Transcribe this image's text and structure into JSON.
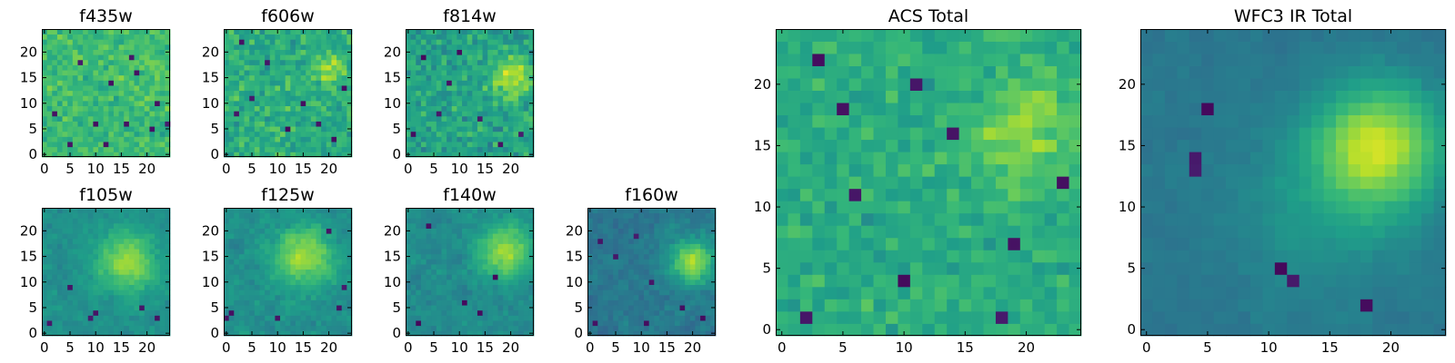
{
  "figure": {
    "colormap": "viridis"
  },
  "chart_data": [
    {
      "type": "heatmap",
      "title": "f435w",
      "grid_size": 25,
      "xticks": [
        0,
        5,
        10,
        15,
        20
      ],
      "yticks": [
        0,
        5,
        10,
        15,
        20
      ],
      "xlim": [
        -0.5,
        24.5
      ],
      "ylim": [
        -0.5,
        24.5
      ],
      "base_level": 0.68,
      "noise": 0.16,
      "smoothing": 0,
      "blobs": [
        {
          "x": 20,
          "y": 17,
          "amp": 0.05,
          "sigma": 3
        }
      ],
      "dark_pixels": [
        [
          5,
          2
        ],
        [
          2,
          8
        ],
        [
          10,
          6
        ],
        [
          17,
          19
        ],
        [
          16,
          6
        ],
        [
          21,
          5
        ],
        [
          13,
          14
        ],
        [
          18,
          16
        ],
        [
          22,
          10
        ],
        [
          7,
          18
        ],
        [
          24,
          6
        ],
        [
          12,
          2
        ]
      ],
      "seed": 11
    },
    {
      "type": "heatmap",
      "title": "f606w",
      "grid_size": 25,
      "xticks": [
        0,
        5,
        10,
        15,
        20
      ],
      "yticks": [
        0,
        5,
        10,
        15,
        20
      ],
      "xlim": [
        -0.5,
        24.5
      ],
      "ylim": [
        -0.5,
        24.5
      ],
      "base_level": 0.62,
      "noise": 0.2,
      "smoothing": 0,
      "blobs": [
        {
          "x": 20,
          "y": 17,
          "amp": 0.25,
          "sigma": 2.2
        }
      ],
      "dark_pixels": [
        [
          21,
          3
        ],
        [
          5,
          11
        ],
        [
          12,
          5
        ],
        [
          8,
          18
        ],
        [
          15,
          10
        ],
        [
          3,
          22
        ],
        [
          18,
          6
        ],
        [
          23,
          13
        ],
        [
          2,
          8
        ]
      ],
      "seed": 23
    },
    {
      "type": "heatmap",
      "title": "f814w",
      "grid_size": 25,
      "xticks": [
        0,
        5,
        10,
        15,
        20
      ],
      "yticks": [
        0,
        5,
        10,
        15,
        20
      ],
      "xlim": [
        -0.5,
        24.5
      ],
      "ylim": [
        -0.5,
        24.5
      ],
      "base_level": 0.58,
      "noise": 0.2,
      "smoothing": 0,
      "blobs": [
        {
          "x": 20,
          "y": 15,
          "amp": 0.3,
          "sigma": 2.8
        }
      ],
      "dark_pixels": [
        [
          3,
          19
        ],
        [
          18,
          2
        ],
        [
          8,
          14
        ],
        [
          14,
          7
        ],
        [
          22,
          4
        ],
        [
          1,
          4
        ],
        [
          10,
          20
        ],
        [
          6,
          8
        ]
      ],
      "seed": 37
    },
    {
      "type": "heatmap",
      "title": "f105w",
      "grid_size": 25,
      "xticks": [
        0,
        5,
        10,
        15,
        20
      ],
      "yticks": [
        0,
        5,
        10,
        15,
        20
      ],
      "xlim": [
        -0.5,
        24.5
      ],
      "ylim": [
        -0.5,
        24.5
      ],
      "base_level": 0.5,
      "noise": 0.14,
      "smoothing": 1,
      "blobs": [
        {
          "x": 16,
          "y": 14,
          "amp": 0.35,
          "sigma": 4
        }
      ],
      "dark_pixels": [
        [
          9,
          3
        ],
        [
          10,
          4
        ],
        [
          1,
          2
        ],
        [
          5,
          9
        ],
        [
          19,
          5
        ],
        [
          22,
          3
        ]
      ],
      "seed": 41
    },
    {
      "type": "heatmap",
      "title": "f125w",
      "grid_size": 25,
      "xticks": [
        0,
        5,
        10,
        15,
        20
      ],
      "yticks": [
        0,
        5,
        10,
        15,
        20
      ],
      "xlim": [
        -0.5,
        24.5
      ],
      "ylim": [
        -0.5,
        24.5
      ],
      "base_level": 0.5,
      "noise": 0.15,
      "smoothing": 1,
      "blobs": [
        {
          "x": 15,
          "y": 15,
          "amp": 0.35,
          "sigma": 4
        }
      ],
      "dark_pixels": [
        [
          1,
          4
        ],
        [
          0,
          3
        ],
        [
          10,
          3
        ],
        [
          22,
          5
        ],
        [
          23,
          9
        ],
        [
          20,
          20
        ]
      ],
      "seed": 53
    },
    {
      "type": "heatmap",
      "title": "f140w",
      "grid_size": 25,
      "xticks": [
        0,
        5,
        10,
        15,
        20
      ],
      "yticks": [
        0,
        5,
        10,
        15,
        20
      ],
      "xlim": [
        -0.5,
        24.5
      ],
      "ylim": [
        -0.5,
        24.5
      ],
      "base_level": 0.48,
      "noise": 0.15,
      "smoothing": 1,
      "blobs": [
        {
          "x": 19,
          "y": 16,
          "amp": 0.38,
          "sigma": 3.6
        }
      ],
      "dark_pixels": [
        [
          2,
          2
        ],
        [
          4,
          21
        ],
        [
          14,
          4
        ],
        [
          11,
          6
        ],
        [
          17,
          11
        ]
      ],
      "seed": 67
    },
    {
      "type": "heatmap",
      "title": "f160w",
      "grid_size": 25,
      "xticks": [
        0,
        5,
        10,
        15,
        20
      ],
      "yticks": [
        0,
        5,
        10,
        15,
        20
      ],
      "xlim": [
        -0.5,
        24.5
      ],
      "ylim": [
        -0.5,
        24.5
      ],
      "base_level": 0.4,
      "noise": 0.16,
      "smoothing": 1,
      "blobs": [
        {
          "x": 20,
          "y": 14,
          "amp": 0.45,
          "sigma": 3.2
        }
      ],
      "dark_pixels": [
        [
          2,
          18
        ],
        [
          9,
          19
        ],
        [
          5,
          15
        ],
        [
          1,
          2
        ],
        [
          11,
          2
        ],
        [
          18,
          5
        ],
        [
          22,
          3
        ],
        [
          12,
          10
        ]
      ],
      "seed": 79
    },
    {
      "type": "heatmap",
      "title": "ACS Total",
      "grid_size": 25,
      "xticks": [
        0,
        5,
        10,
        15,
        20
      ],
      "yticks": [
        0,
        5,
        10,
        15,
        20
      ],
      "xlim": [
        -0.5,
        24.5
      ],
      "ylim": [
        -0.5,
        24.5
      ],
      "base_level": 0.62,
      "noise": 0.14,
      "smoothing": 0,
      "blobs": [
        {
          "x": 20,
          "y": 16,
          "amp": 0.22,
          "sigma": 3
        }
      ],
      "dark_pixels": [
        [
          2,
          1
        ],
        [
          3,
          22
        ],
        [
          5,
          18
        ],
        [
          11,
          20
        ],
        [
          19,
          7
        ],
        [
          10,
          4
        ],
        [
          18,
          1
        ],
        [
          23,
          12
        ],
        [
          14,
          16
        ],
        [
          6,
          11
        ]
      ],
      "seed": 97
    },
    {
      "type": "heatmap",
      "title": "WFC3 IR Total",
      "grid_size": 25,
      "xticks": [
        0,
        5,
        10,
        15,
        20
      ],
      "yticks": [
        0,
        5,
        10,
        15,
        20
      ],
      "xlim": [
        -0.5,
        24.5
      ],
      "ylim": [
        -0.5,
        24.5
      ],
      "base_level": 0.4,
      "noise": 0.07,
      "smoothing": 1,
      "blobs": [
        {
          "x": 19,
          "y": 15,
          "amp": 0.5,
          "sigma": 3.5
        },
        {
          "x": 14,
          "y": 10,
          "amp": 0.12,
          "sigma": 5
        }
      ],
      "dark_pixels": [
        [
          4,
          13
        ],
        [
          4,
          14
        ],
        [
          5,
          18
        ],
        [
          18,
          2
        ],
        [
          12,
          4
        ],
        [
          11,
          5
        ]
      ],
      "seed": 131
    }
  ]
}
